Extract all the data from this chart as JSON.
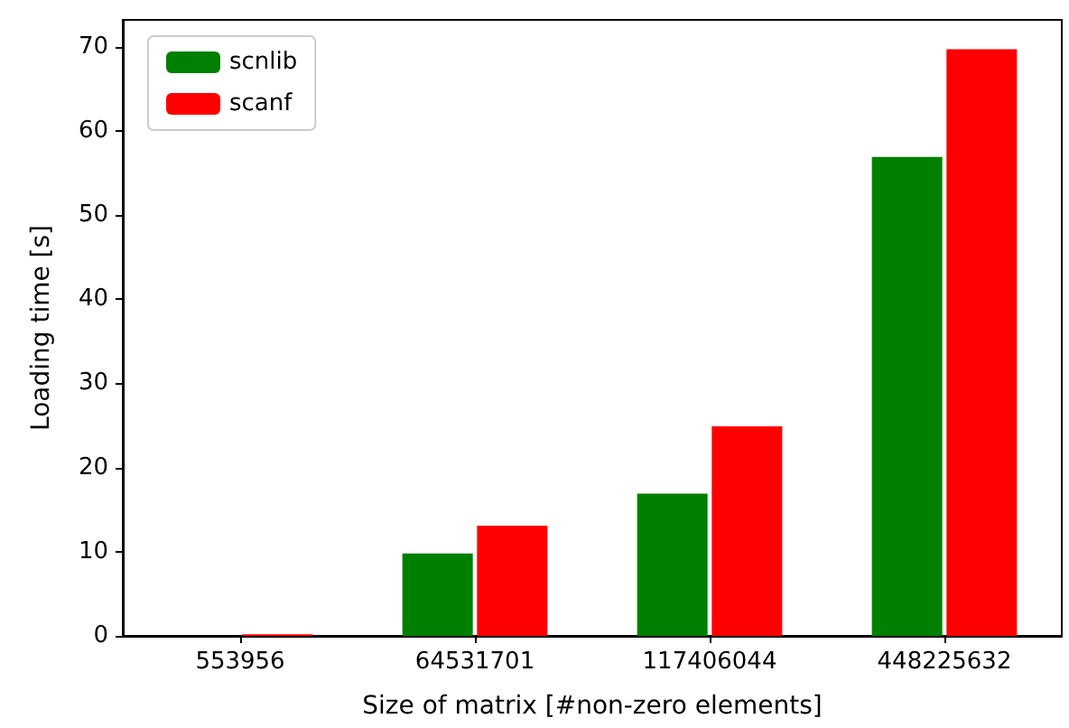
{
  "chart_data": {
    "type": "bar",
    "xlabel": "Size of matrix [#non-zero elements]",
    "ylabel": "Loading time [s]",
    "categories": [
      "553956",
      "64531701",
      "117406044",
      "448225632"
    ],
    "series": [
      {
        "name": "scnlib",
        "color": "#008000",
        "values": [
          0,
          9.8,
          16.9,
          56.9
        ]
      },
      {
        "name": "scanf",
        "color": "#ff0000",
        "values": [
          0.2,
          13.1,
          24.9,
          69.7
        ]
      }
    ],
    "ylim": [
      0,
      73.2
    ],
    "yticks": [
      0,
      10,
      20,
      30,
      40,
      50,
      60,
      70
    ],
    "grid": false,
    "legend": "top left"
  }
}
